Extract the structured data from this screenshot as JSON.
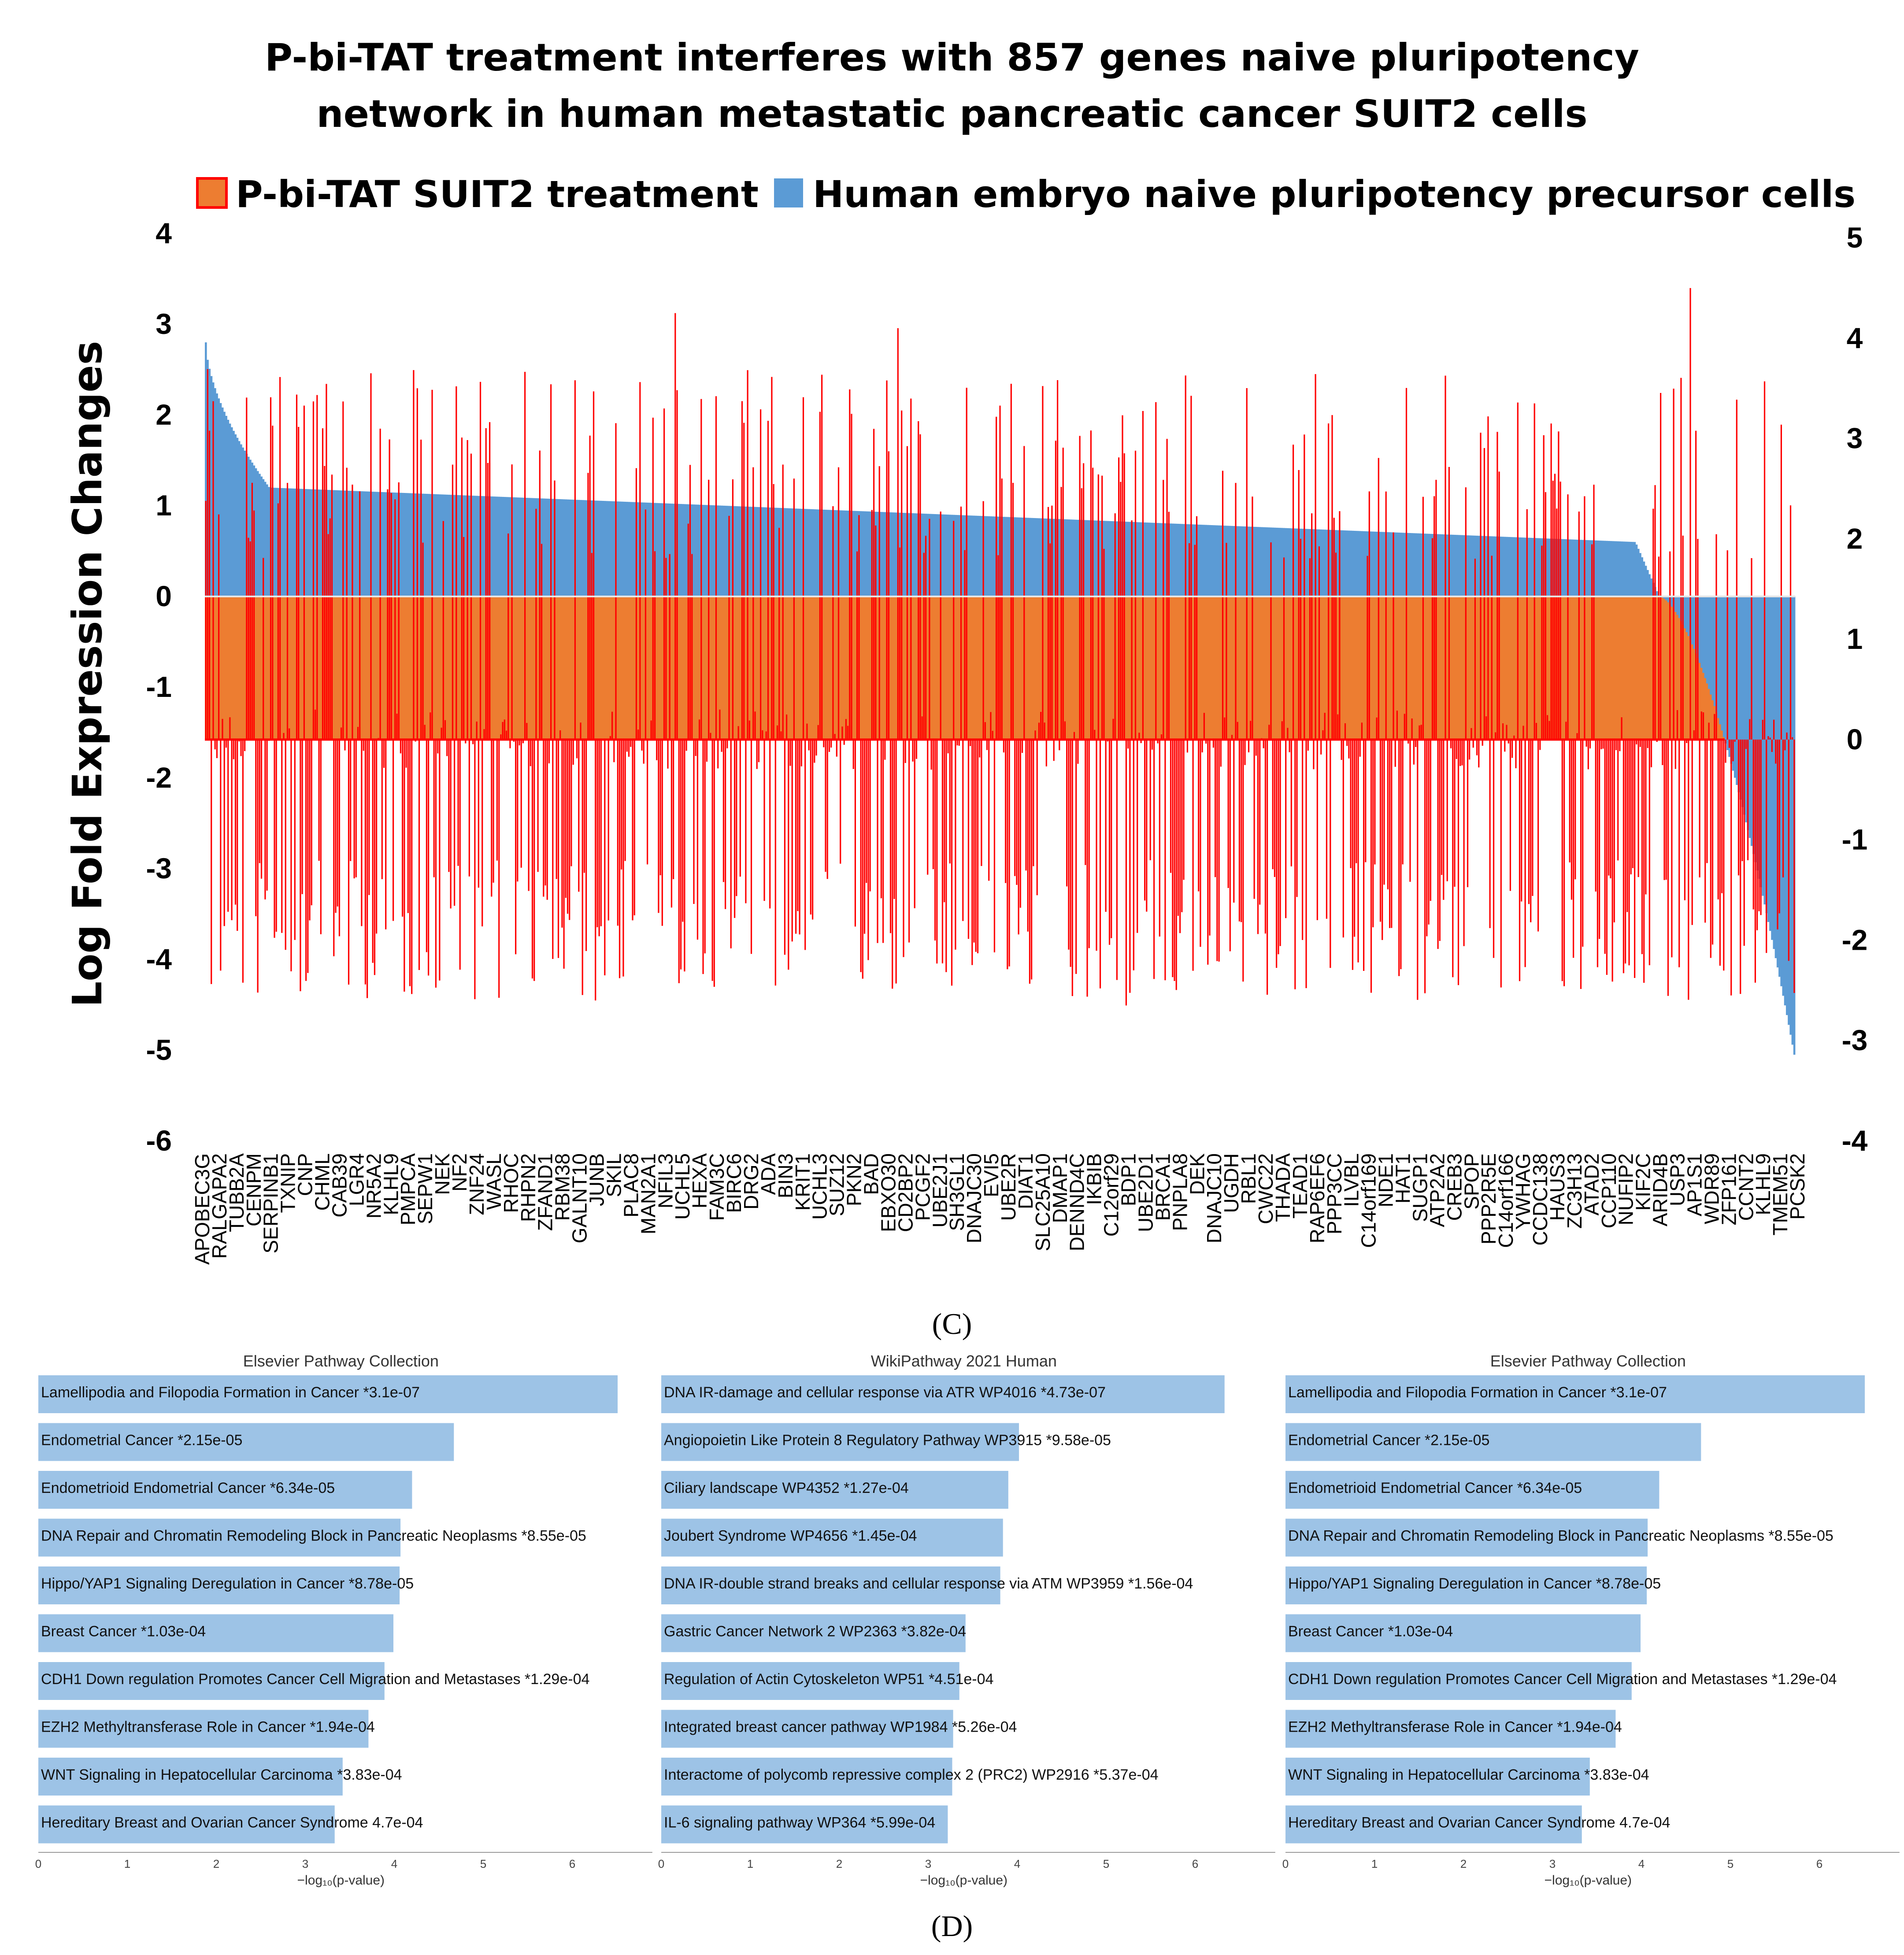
{
  "chart_data": [
    {
      "type": "bar",
      "title": "P-bi-TAT treatment interferes with 857 genes naive pluripotency network in human metastatic pancreatic cancer SUIT2 cells",
      "title_lines": [
        "P-bi-TAT treatment interferes with 857 genes naive pluripotency",
        "network in human metastatic pancreatic cancer SUIT2 cells"
      ],
      "legend": [
        {
          "name": "P-bi-TAT SUIT2 treatment",
          "color": "#ED7D31",
          "edge": "#FF0000"
        },
        {
          "name": "Human embryo naive pluripotency precursor cells",
          "color": "#5B9BD5"
        }
      ],
      "ylabel": "Log Fold Expression Changes",
      "ylim_left": [
        -6,
        4
      ],
      "yticks_left": [
        "4",
        "3",
        "2",
        "1",
        "0",
        "-1",
        "-2",
        "-3",
        "-4",
        "-5",
        "-6"
      ],
      "ylim_right": [
        -4,
        5
      ],
      "yticks_right": [
        "5",
        "4",
        "3",
        "2",
        "1",
        "0",
        "-1",
        "-2",
        "-3",
        "-4"
      ],
      "gene_count": 857,
      "series": [
        {
          "name": "Human embryo naive pluripotency precursor cells",
          "axis": "left",
          "description": "sorted descending",
          "start": 2.8,
          "plateau_start": 1.0,
          "plateau_end": 0.45,
          "min": -5.05
        },
        {
          "name": "P-bi-TAT SUIT2 treatment",
          "axis": "right",
          "baseline_right": 0.0,
          "range_right": [
            -2.6,
            4.5
          ]
        }
      ],
      "categories": [
        "APOBEC3G",
        "RALGAPA2",
        "TUBB2A",
        "CENPM",
        "SERPINB1",
        "TXNIP",
        "CNP",
        "CHML",
        "CAB39",
        "LGR4",
        "NR5A2",
        "KLHL9",
        "PMPCA",
        "SEPW1",
        "NEK",
        "NF2",
        "ZNF24",
        "WASL",
        "RHOC",
        "RHPN2",
        "ZFAND1",
        "RBM38",
        "GALNT10",
        "JUNB",
        "SKIL",
        "PLAC8",
        "MAN2A1",
        "NFIL3",
        "UCHL5",
        "HEXA",
        "FAM3C",
        "BIRC6",
        "DRG2",
        "ADA",
        "BIN3",
        "KRIT1",
        "UCHL3",
        "SUZ12",
        "PKN2",
        "BAD",
        "EBXO30",
        "CD2BP2",
        "PCGF2",
        "UBE2J1",
        "SH3GL1",
        "DNAJC30",
        "EVI5",
        "UBE2R",
        "DIAT1",
        "SLC25A10",
        "DMAP1",
        "DENND4C",
        "IKBIB",
        "C12orf29",
        "BDP1",
        "UBE2D1",
        "BRCA1",
        "PNPLA8",
        "DEK",
        "DNAJC10",
        "UGDH",
        "RBL1",
        "CWC22",
        "THADA",
        "TEAD1",
        "RAP6EF6",
        "PPP3CC",
        "ILVBL",
        "C14orf169",
        "NDE1",
        "HAT1",
        "SUGP1",
        "ATP2A2",
        "CREB3",
        "SPOP",
        "PPP2R5E",
        "C14orf166",
        "YWHAG",
        "CCDC138",
        "HAUS3",
        "ZC3H13",
        "ATAD2",
        "CCP110",
        "NUFIP2",
        "KIF2C",
        "ARID4B",
        "USP3",
        "AP1S1",
        "WDR89",
        "ZFP161",
        "CCNT2",
        "KLHL9",
        "TMEM51",
        "PCSK2"
      ]
    },
    {
      "type": "bar",
      "orientation": "horizontal",
      "title": "Elsevier Pathway Collection",
      "xlabel": "−log₁₀(p-value)",
      "xlim": [
        0,
        6.9
      ],
      "xticks": [
        0,
        1,
        2,
        3,
        4,
        5,
        6
      ],
      "categories": [
        "Lamellipodia and Filopodia Formation in Cancer  *3.1e-07",
        "Endometrial Cancer  *2.15e-05",
        "Endometrioid Endometrial Cancer  *6.34e-05",
        "DNA Repair and Chromatin Remodeling Block in Pancreatic Neoplasms  *8.55e-05",
        "Hippo/YAP1 Signaling Deregulation in Cancer  *8.78e-05",
        "Breast Cancer  *1.03e-04",
        "CDH1 Down regulation Promotes Cancer Cell Migration and Metastases  *1.29e-04",
        "EZH2 Methyltransferase Role in Cancer  *1.94e-04",
        "WNT Signaling in Hepatocellular Carcinoma  *3.83e-04",
        "Hereditary Breast and Ovarian Cancer Syndrome  4.7e-04"
      ],
      "values": [
        6.51,
        4.67,
        4.2,
        4.07,
        4.06,
        3.99,
        3.89,
        3.71,
        3.42,
        3.33
      ]
    },
    {
      "type": "bar",
      "orientation": "horizontal",
      "title": "WikiPathway 2021 Human",
      "xlabel": "−log₁₀(p-value)",
      "xlim": [
        0,
        6.9
      ],
      "xticks": [
        0,
        1,
        2,
        3,
        4,
        5,
        6
      ],
      "categories": [
        "DNA IR-damage and cellular response via ATR WP4016  *4.73e-07",
        "Angiopoietin Like Protein 8 Regulatory Pathway WP3915  *9.58e-05",
        "Ciliary landscape WP4352  *1.27e-04",
        "Joubert Syndrome WP4656  *1.45e-04",
        "DNA IR-double strand breaks and cellular response via ATM WP3959  *1.56e-04",
        "Gastric Cancer Network 2 WP2363  *3.82e-04",
        "Regulation of Actin Cytoskeleton WP51  *4.51e-04",
        "Integrated breast cancer pathway WP1984  *5.26e-04",
        "Interactome of polycomb repressive complex 2 (PRC2)  WP2916  *5.37e-04",
        "IL-6 signaling pathway WP364  *5.99e-04"
      ],
      "values": [
        6.33,
        4.02,
        3.9,
        3.84,
        3.81,
        3.42,
        3.35,
        3.28,
        3.27,
        3.22
      ]
    },
    {
      "type": "bar",
      "orientation": "horizontal",
      "title": "Elsevier Pathway Collection",
      "xlabel": "−log₁₀(p-value)",
      "xlim": [
        0,
        6.9
      ],
      "xticks": [
        0,
        1,
        2,
        3,
        4,
        5,
        6
      ],
      "categories": [
        "Lamellipodia and Filopodia Formation in Cancer  *3.1e-07",
        "Endometrial Cancer  *2.15e-05",
        "Endometrioid Endometrial Cancer  *6.34e-05",
        "DNA Repair and Chromatin Remodeling Block in Pancreatic Neoplasms  *8.55e-05",
        "Hippo/YAP1 Signaling Deregulation in Cancer  *8.78e-05",
        "Breast Cancer  *1.03e-04",
        "CDH1 Down regulation Promotes Cancer Cell Migration and Metastases  *1.29e-04",
        "EZH2 Methyltransferase Role in Cancer  *1.94e-04",
        "WNT Signaling in Hepatocellular Carcinoma  *3.83e-04",
        "Hereditary Breast and Ovarian Cancer Syndrome  4.7e-04"
      ],
      "values": [
        6.51,
        4.67,
        4.2,
        4.07,
        4.06,
        3.99,
        3.89,
        3.71,
        3.42,
        3.33
      ]
    }
  ],
  "panel_labels": {
    "c": "(C)",
    "d": "(D)"
  },
  "colors": {
    "blue_series": "#5B9BD5",
    "orange_series": "#ED7D31",
    "red_spike": "#FF0000",
    "pathway_bar": "#9DC3E6"
  }
}
